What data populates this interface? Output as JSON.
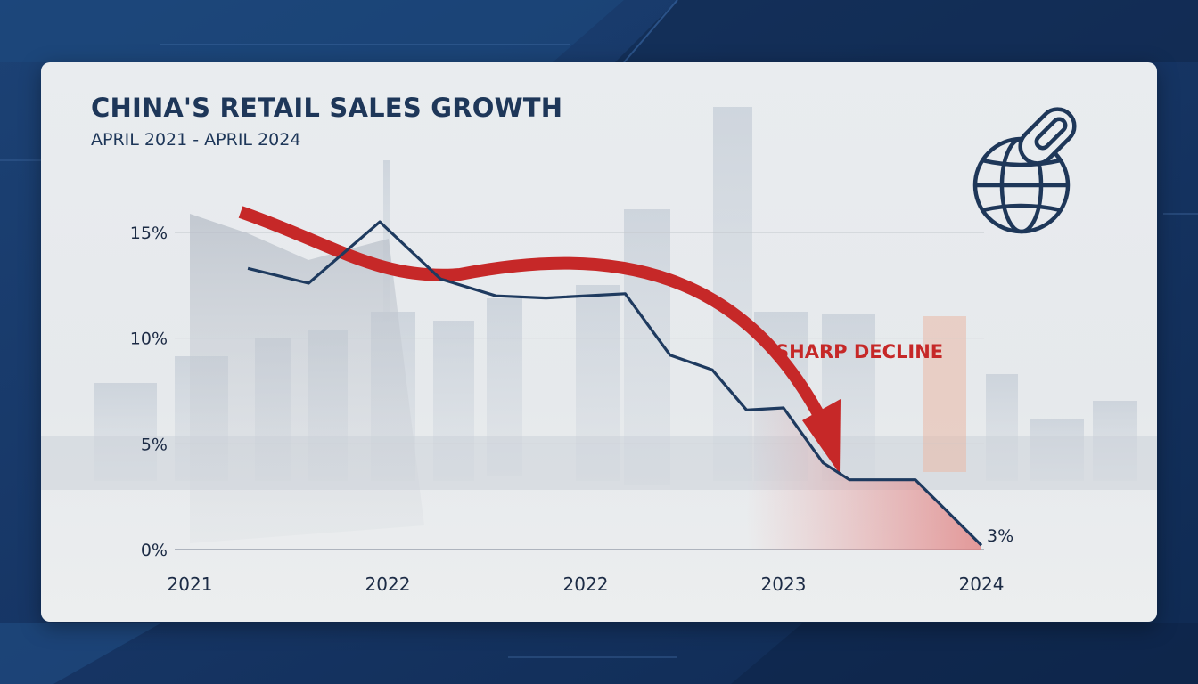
{
  "chart_data": {
    "type": "line",
    "title": "CHINA'S RETAIL SALES GROWTH",
    "subtitle": "APRIL 2021 - APRIL 2024",
    "xlabel": "",
    "ylabel": "",
    "x_tick_labels": [
      "2021",
      "2022",
      "2022",
      "2023",
      "2024"
    ],
    "y_tick_labels": [
      "0%",
      "5%",
      "10%",
      "15%"
    ],
    "ylim": [
      0,
      16
    ],
    "xlim": [
      2021.0,
      2024.0
    ],
    "grid": "horizontal",
    "series": [
      {
        "color": "#1e3a5f",
        "x": [
          2021.22,
          2021.45,
          2021.72,
          2021.95,
          2022.16,
          2022.35,
          2022.65,
          2022.82,
          2022.98,
          2023.11,
          2023.25,
          2023.4,
          2023.5,
          2023.62,
          2023.75,
          2024.0
        ],
        "y": [
          13.3,
          12.6,
          15.5,
          12.8,
          12.0,
          11.9,
          12.1,
          9.2,
          8.5,
          6.6,
          6.7,
          4.1,
          3.3,
          3.3,
          3.3,
          0.2
        ]
      }
    ],
    "annotations": [
      {
        "text": "SHARP DECLINE",
        "color": "#c62828"
      },
      {
        "text": "3%"
      }
    ]
  },
  "icons": {
    "logo": "globe-link-icon"
  },
  "colors": {
    "background": "#183866",
    "card": "#e8ebee",
    "line": "#1e3a5f",
    "accent_red": "#c62828",
    "grid": "#c3c7cc"
  }
}
